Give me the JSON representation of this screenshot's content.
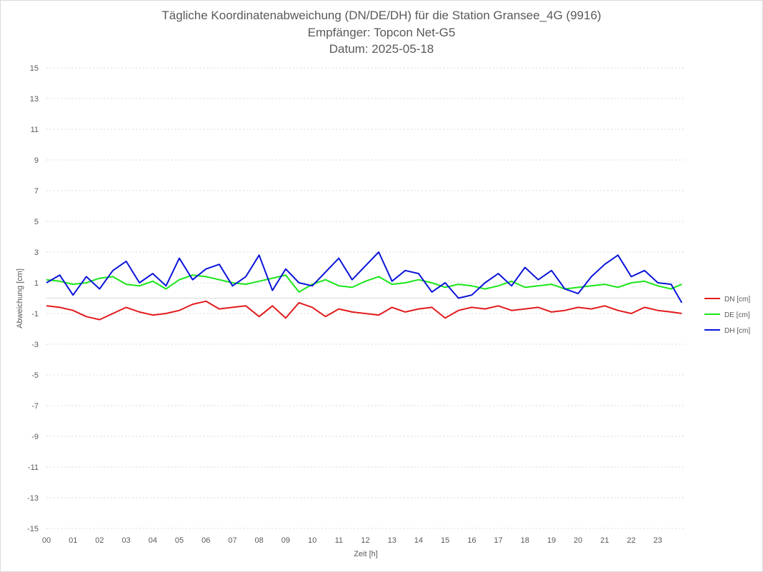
{
  "chart_data": {
    "type": "line",
    "title": "Tägliche Koordinatenabweichung (DN/DE/DH) für die Station Gransee_4G (9916)",
    "subtitle_1": "Empfänger: Topcon Net-G5",
    "subtitle_2": "Datum: 2025-05-18",
    "xlabel": "Zeit [h]",
    "ylabel": "Abweichung [cm]",
    "xlim": [
      0,
      24
    ],
    "ylim": [
      -15,
      15
    ],
    "x_ticks": [
      "00",
      "01",
      "02",
      "03",
      "04",
      "05",
      "06",
      "07",
      "08",
      "09",
      "10",
      "11",
      "12",
      "13",
      "14",
      "15",
      "16",
      "17",
      "18",
      "19",
      "20",
      "21",
      "22",
      "23"
    ],
    "y_ticks": [
      15,
      13,
      11,
      9,
      7,
      5,
      3,
      1,
      -1,
      -3,
      -5,
      -7,
      -9,
      -11,
      -13,
      -15
    ],
    "grid": true,
    "legend_position": "right",
    "x": [
      0,
      0.5,
      1,
      1.5,
      2,
      2.5,
      3,
      3.5,
      4,
      4.5,
      5,
      5.5,
      6,
      6.5,
      7,
      7.5,
      8,
      8.5,
      9,
      9.5,
      10,
      10.5,
      11,
      11.5,
      12,
      12.5,
      13,
      13.5,
      14,
      14.5,
      15,
      15.5,
      16,
      16.5,
      17,
      17.5,
      18,
      18.5,
      19,
      19.5,
      20,
      20.5,
      21,
      21.5,
      22,
      22.5,
      23,
      23.5,
      23.9
    ],
    "series": [
      {
        "name": "DN [cm]",
        "color": "#e31a1c",
        "values": [
          -0.5,
          -0.6,
          -0.8,
          -1.2,
          -1.4,
          -1.0,
          -0.6,
          -0.9,
          -1.1,
          -1.0,
          -0.8,
          -0.4,
          -0.2,
          -0.7,
          -0.6,
          -0.5,
          -1.2,
          -0.5,
          -1.3,
          -0.3,
          -0.6,
          -1.2,
          -0.7,
          -0.9,
          -1.0,
          -1.1,
          -0.6,
          -0.9,
          -0.7,
          -0.6,
          -1.3,
          -0.8,
          -0.6,
          -0.7,
          -0.5,
          -0.8,
          -0.7,
          -0.6,
          -0.9,
          -0.8,
          -0.6,
          -0.7,
          -0.5,
          -0.8,
          -1.0,
          -0.6,
          -0.8,
          -0.9,
          -1.0
        ]
      },
      {
        "name": "DE [cm]",
        "color": "#19e619",
        "values": [
          1.2,
          1.1,
          0.9,
          1.0,
          1.3,
          1.4,
          0.9,
          0.8,
          1.1,
          0.6,
          1.2,
          1.5,
          1.4,
          1.2,
          1.0,
          0.9,
          1.1,
          1.3,
          1.5,
          0.4,
          0.9,
          1.2,
          0.8,
          0.7,
          1.1,
          1.4,
          0.9,
          1.0,
          1.2,
          1.0,
          0.7,
          0.9,
          0.8,
          0.6,
          0.8,
          1.1,
          0.7,
          0.8,
          0.9,
          0.6,
          0.7,
          0.8,
          0.9,
          0.7,
          1.0,
          1.1,
          0.8,
          0.6,
          0.9
        ]
      },
      {
        "name": "DH [cm]",
        "color": "#0a14d9",
        "values": [
          1.0,
          1.5,
          0.2,
          1.4,
          0.6,
          1.8,
          2.4,
          1.0,
          1.6,
          0.8,
          2.6,
          1.2,
          1.9,
          2.2,
          0.8,
          1.4,
          2.8,
          0.5,
          1.9,
          1.0,
          0.8,
          1.7,
          2.6,
          1.2,
          2.1,
          3.0,
          1.1,
          1.8,
          1.6,
          0.4,
          1.0,
          0.0,
          0.2,
          1.0,
          1.6,
          0.8,
          2.0,
          1.2,
          1.8,
          0.6,
          0.3,
          1.4,
          2.2,
          2.8,
          1.4,
          1.8,
          1.0,
          0.9,
          -0.3
        ]
      }
    ]
  }
}
